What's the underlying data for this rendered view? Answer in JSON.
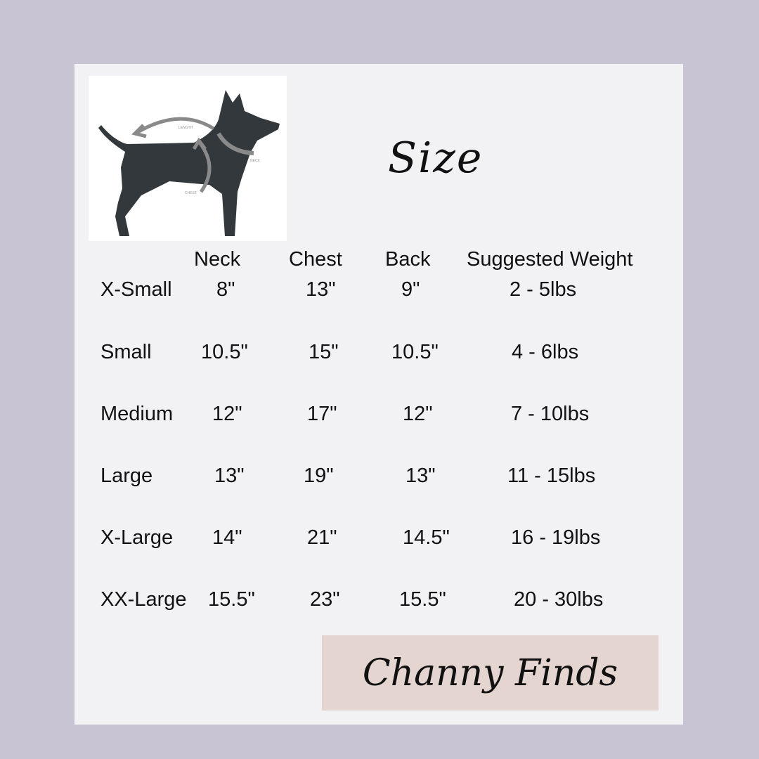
{
  "title": "Size",
  "illustration": {
    "icon": "dog-measurement-diagram",
    "labels": [
      "LENGTH",
      "NECK",
      "CHEST"
    ]
  },
  "table": {
    "headers": [
      "",
      "Neck",
      "Chest",
      "Back",
      "Suggested Weight"
    ],
    "rows": [
      [
        "X-Small",
        "8\"",
        "13\"",
        "9\"",
        "2 - 5lbs"
      ],
      [
        "Small",
        "10.5\"",
        "15\"",
        "10.5\"",
        "4 - 6lbs"
      ],
      [
        "Medium",
        "12\"",
        "17\"",
        "12\"",
        "7 - 10lbs"
      ],
      [
        "Large",
        "13\"",
        "19\"",
        "13\"",
        "11 - 15lbs"
      ],
      [
        "X-Large",
        "14\"",
        "21\"",
        "14.5\"",
        "16 - 19lbs"
      ],
      [
        "XX-Large",
        "15.5\"",
        "23\"",
        "15.5\"",
        "20 - 30lbs"
      ]
    ]
  },
  "brand": "Channy Finds",
  "colors": {
    "background": "#c8c4d3",
    "card": "#f2f2f5",
    "brand_box": "#e4d5d1",
    "dog": "#33383c"
  }
}
